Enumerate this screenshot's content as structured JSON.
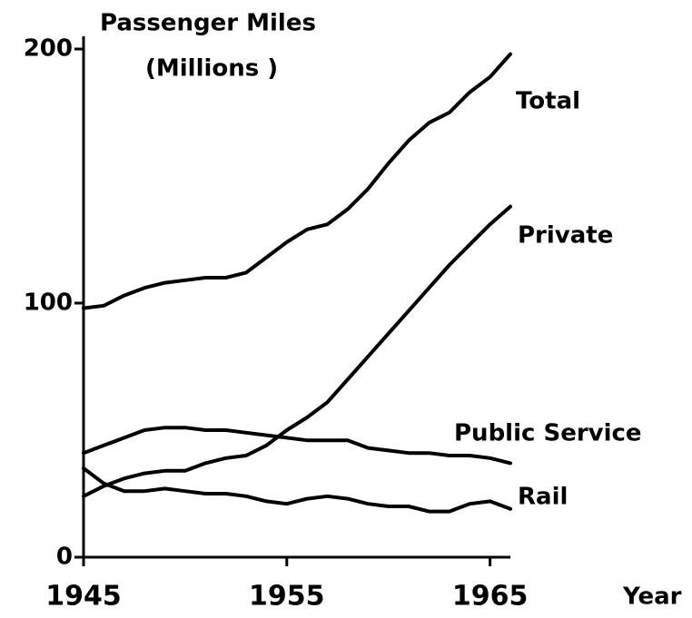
{
  "chart_data": {
    "type": "line",
    "ylabel": [
      "Passenger Miles",
      "(Millions )"
    ],
    "xlabel": "Year",
    "x": [
      1945,
      1946,
      1947,
      1948,
      1949,
      1950,
      1951,
      1952,
      1953,
      1954,
      1955,
      1956,
      1957,
      1958,
      1959,
      1960,
      1961,
      1962,
      1963,
      1964,
      1965,
      1966
    ],
    "series": [
      {
        "name": "Total",
        "color": "#000000",
        "values": [
          98,
          99,
          103,
          106,
          108,
          109,
          110,
          110,
          112,
          118,
          124,
          129,
          131,
          137,
          145,
          155,
          164,
          171,
          175,
          183,
          189,
          198
        ]
      },
      {
        "name": "Private",
        "color": "#000000",
        "values": [
          24,
          28,
          31,
          33,
          34,
          34,
          37,
          39,
          40,
          44,
          50,
          55,
          61,
          70,
          79,
          88,
          97,
          106,
          115,
          123,
          131,
          138
        ]
      },
      {
        "name": "Public Service",
        "color": "#000000",
        "values": [
          41,
          44,
          47,
          50,
          51,
          51,
          50,
          50,
          49,
          48,
          47,
          46,
          46,
          46,
          43,
          42,
          41,
          41,
          40,
          40,
          39,
          37
        ]
      },
      {
        "name": "Rail",
        "color": "#000000",
        "values": [
          35,
          29,
          26,
          26,
          27,
          26,
          25,
          25,
          24,
          22,
          21,
          23,
          24,
          23,
          21,
          20,
          20,
          18,
          18,
          21,
          22,
          19
        ]
      }
    ],
    "xlim": [
      1945,
      1966
    ],
    "xticks": [
      1945,
      1955,
      1965
    ],
    "ylim": [
      0,
      200
    ],
    "yticks": [
      0,
      100,
      200
    ]
  }
}
